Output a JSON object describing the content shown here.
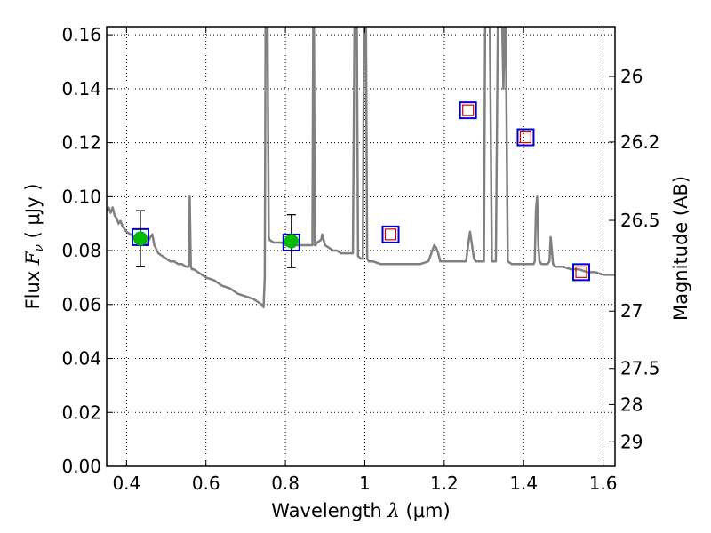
{
  "chart_data": {
    "type": "line",
    "title": "",
    "xlabel": {
      "prefix": "Wavelength  ",
      "symbol": "λ",
      "unit": " (μm)"
    },
    "ylabel": {
      "prefix": "Flux  ",
      "symbol": "F",
      "subscript": "ν",
      "unit": " ( μJy )"
    },
    "y2label": "Magnitude (AB)",
    "xlim": [
      0.35,
      1.63
    ],
    "ylim": [
      0.0,
      0.163
    ],
    "grid": true,
    "x_ticks": [
      {
        "value": 0.4,
        "label": "0.4"
      },
      {
        "value": 0.6,
        "label": "0.6"
      },
      {
        "value": 0.8,
        "label": "0.8"
      },
      {
        "value": 1.0,
        "label": "1"
      },
      {
        "value": 1.2,
        "label": "1.2"
      },
      {
        "value": 1.4,
        "label": "1.4"
      },
      {
        "value": 1.6,
        "label": "1.6"
      }
    ],
    "y_ticks": [
      {
        "value": 0.0,
        "label": "0.00"
      },
      {
        "value": 0.02,
        "label": "0.02"
      },
      {
        "value": 0.04,
        "label": "0.04"
      },
      {
        "value": 0.06,
        "label": "0.06"
      },
      {
        "value": 0.08,
        "label": "0.08"
      },
      {
        "value": 0.1,
        "label": "0.10"
      },
      {
        "value": 0.12,
        "label": "0.12"
      },
      {
        "value": 0.14,
        "label": "0.14"
      },
      {
        "value": 0.16,
        "label": "0.16"
      }
    ],
    "y2_ticks": [
      {
        "value": 26,
        "label": "26"
      },
      {
        "value": 26.2,
        "label": "26.2"
      },
      {
        "value": 26.5,
        "label": "26.5"
      },
      {
        "value": 27,
        "label": "27"
      },
      {
        "value": 27.5,
        "label": "27.5"
      },
      {
        "value": 28,
        "label": "28"
      },
      {
        "value": 29,
        "label": "29"
      }
    ],
    "series": [
      {
        "role": "model-spectrum",
        "color": "#808080",
        "x": [
          0.35,
          0.355,
          0.36,
          0.365,
          0.37,
          0.375,
          0.38,
          0.385,
          0.39,
          0.395,
          0.4,
          0.41,
          0.42,
          0.43,
          0.44,
          0.45,
          0.46,
          0.465,
          0.47,
          0.48,
          0.49,
          0.5,
          0.51,
          0.52,
          0.53,
          0.54,
          0.55,
          0.556,
          0.559,
          0.562,
          0.565,
          0.57,
          0.58,
          0.6,
          0.62,
          0.64,
          0.66,
          0.68,
          0.7,
          0.72,
          0.73,
          0.74,
          0.745,
          0.748,
          0.75,
          0.752,
          0.755,
          0.758,
          0.76,
          0.77,
          0.78,
          0.79,
          0.8,
          0.81,
          0.82,
          0.83,
          0.84,
          0.85,
          0.86,
          0.868,
          0.87,
          0.872,
          0.874,
          0.876,
          0.88,
          0.89,
          0.893,
          0.896,
          0.9,
          0.91,
          0.92,
          0.93,
          0.94,
          0.95,
          0.96,
          0.97,
          0.974,
          0.977,
          0.98,
          0.983,
          0.99,
          0.995,
          0.998,
          1.0,
          1.003,
          1.006,
          1.01,
          1.02,
          1.04,
          1.06,
          1.08,
          1.1,
          1.12,
          1.14,
          1.16,
          1.17,
          1.175,
          1.18,
          1.185,
          1.19,
          1.22,
          1.24,
          1.255,
          1.262,
          1.265,
          1.268,
          1.275,
          1.28,
          1.29,
          1.3,
          1.303,
          1.306,
          1.31,
          1.315,
          1.32,
          1.33,
          1.335,
          1.338,
          1.34,
          1.343,
          1.346,
          1.349,
          1.352,
          1.355,
          1.36,
          1.37,
          1.38,
          1.39,
          1.4,
          1.41,
          1.42,
          1.425,
          1.428,
          1.431,
          1.434,
          1.437,
          1.44,
          1.445,
          1.45,
          1.46,
          1.465,
          1.468,
          1.471,
          1.474,
          1.48,
          1.5,
          1.52,
          1.54,
          1.56,
          1.58,
          1.6,
          1.615,
          1.63
        ],
        "y": [
          0.095,
          0.096,
          0.094,
          0.096,
          0.093,
          0.092,
          0.09,
          0.091,
          0.089,
          0.088,
          0.087,
          0.086,
          0.085,
          0.084,
          0.083,
          0.082,
          0.085,
          0.086,
          0.082,
          0.079,
          0.078,
          0.077,
          0.076,
          0.076,
          0.075,
          0.075,
          0.074,
          0.074,
          0.1,
          0.074,
          0.073,
          0.073,
          0.072,
          0.07,
          0.069,
          0.067,
          0.066,
          0.064,
          0.063,
          0.062,
          0.061,
          0.06,
          0.059,
          0.07,
          0.163,
          0.163,
          0.163,
          0.085,
          0.084,
          0.083,
          0.083,
          0.083,
          0.082,
          0.082,
          0.082,
          0.082,
          0.082,
          0.082,
          0.082,
          0.082,
          0.163,
          0.163,
          0.082,
          0.082,
          0.083,
          0.084,
          0.086,
          0.084,
          0.082,
          0.081,
          0.08,
          0.08,
          0.079,
          0.079,
          0.079,
          0.079,
          0.163,
          0.163,
          0.163,
          0.078,
          0.077,
          0.077,
          0.163,
          0.163,
          0.163,
          0.077,
          0.076,
          0.076,
          0.075,
          0.075,
          0.075,
          0.075,
          0.075,
          0.075,
          0.076,
          0.08,
          0.082,
          0.081,
          0.079,
          0.076,
          0.076,
          0.076,
          0.076,
          0.084,
          0.087,
          0.084,
          0.077,
          0.076,
          0.076,
          0.076,
          0.163,
          0.163,
          0.163,
          0.163,
          0.076,
          0.076,
          0.163,
          0.163,
          0.163,
          0.163,
          0.163,
          0.14,
          0.163,
          0.163,
          0.076,
          0.075,
          0.075,
          0.075,
          0.075,
          0.075,
          0.075,
          0.075,
          0.076,
          0.095,
          0.1,
          0.082,
          0.076,
          0.075,
          0.075,
          0.075,
          0.076,
          0.085,
          0.08,
          0.075,
          0.074,
          0.074,
          0.073,
          0.073,
          0.072,
          0.072,
          0.071,
          0.071,
          0.071
        ]
      },
      {
        "role": "photometry-model",
        "marker": "open-square",
        "color": "#0000cc",
        "x": [
          0.435,
          0.815,
          1.065,
          1.26,
          1.405,
          1.545
        ],
        "y": [
          0.085,
          0.083,
          0.086,
          0.132,
          0.122,
          0.072
        ]
      },
      {
        "role": "photometry-model-inner",
        "marker": "open-square",
        "color": "#dd0000",
        "x": [
          1.065,
          1.26,
          1.405,
          1.545
        ],
        "y": [
          0.086,
          0.132,
          0.122,
          0.072
        ]
      },
      {
        "role": "observed",
        "marker": "filled-circle",
        "color": "#00bb00",
        "x": [
          0.435,
          0.815
        ],
        "y": [
          0.0845,
          0.0835
        ],
        "yerr": [
          0.0103,
          0.0098
        ]
      }
    ]
  }
}
